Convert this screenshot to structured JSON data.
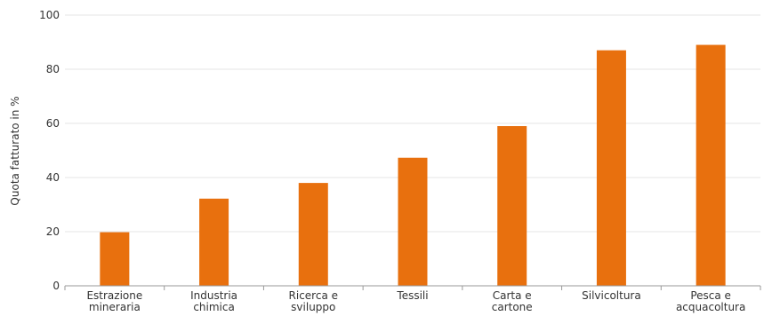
{
  "chart_data": {
    "type": "bar",
    "title": "",
    "xlabel": "",
    "ylabel": "Quota fatturato in %",
    "ylim": [
      0,
      100
    ],
    "yticks": [
      0,
      20,
      40,
      60,
      80,
      100
    ],
    "grid": true,
    "bar_color": "#e8700e",
    "categories": [
      [
        "Estrazione",
        "mineraria"
      ],
      [
        "Industria",
        "chimica"
      ],
      [
        "Ricerca e",
        "sviluppo"
      ],
      [
        "Tessili"
      ],
      [
        "Carta e",
        "cartone"
      ],
      [
        "Silvicoltura"
      ],
      [
        "Pesca e",
        "acquacoltura"
      ]
    ],
    "values": [
      19.8,
      32.2,
      38.0,
      47.3,
      59.0,
      87.0,
      89.0
    ]
  }
}
